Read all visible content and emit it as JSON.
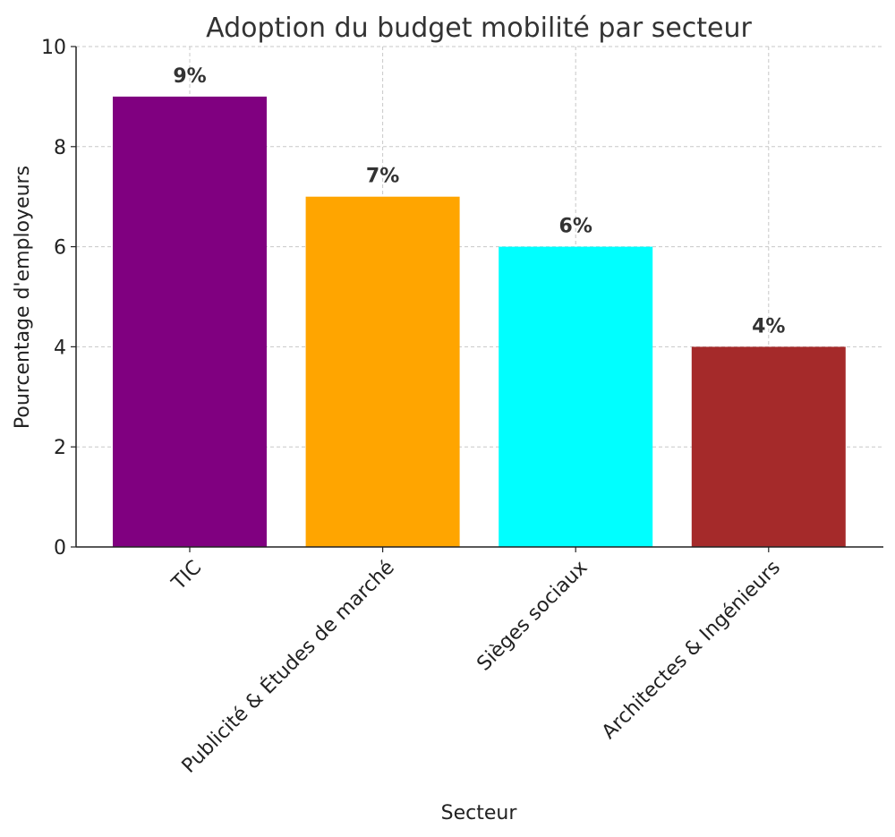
{
  "chart_data": {
    "type": "bar",
    "title": "Adoption du budget mobilité par secteur",
    "xlabel": "Secteur",
    "ylabel": "Pourcentage d'employeurs",
    "categories": [
      "TIC",
      "Publicité & Études de marché",
      "Sièges sociaux",
      "Architectes & Ingénieurs"
    ],
    "values": [
      9,
      7,
      6,
      4
    ],
    "data_labels": [
      "9%",
      "7%",
      "6%",
      "4%"
    ],
    "colors": [
      "#800080",
      "#FFA500",
      "#00FFFF",
      "#A52A2A"
    ],
    "ylim": [
      0,
      10
    ],
    "yticks": [
      0,
      2,
      4,
      6,
      8,
      10
    ],
    "grid": true,
    "xtick_rotation": 45
  }
}
